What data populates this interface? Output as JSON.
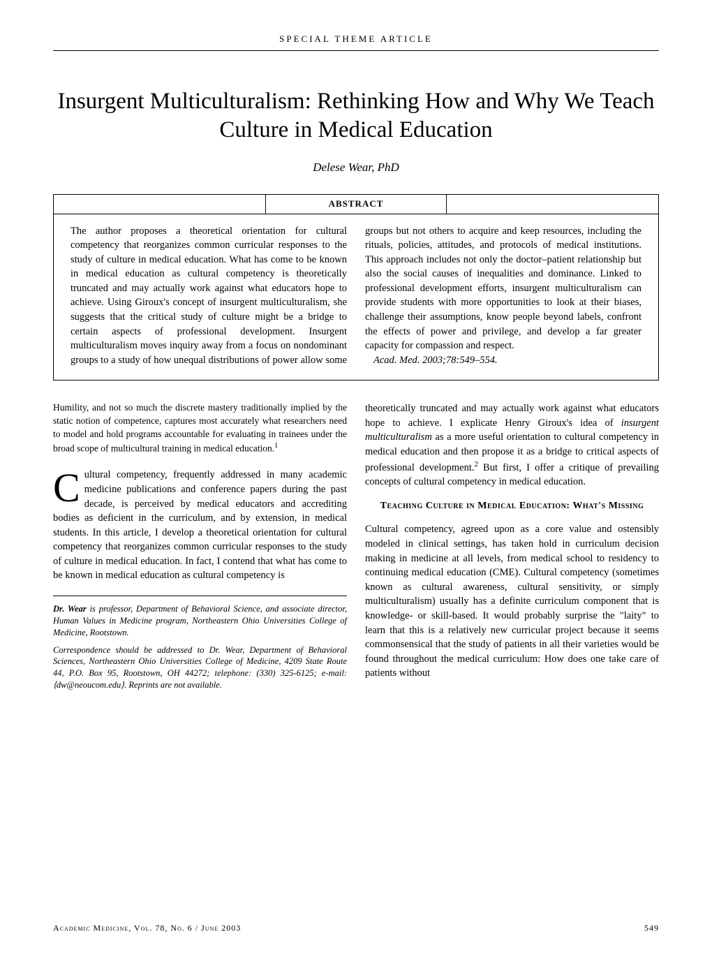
{
  "sectionLabel": "SPECIAL THEME ARTICLE",
  "title": "Insurgent Multiculturalism: Rethinking How and Why We Teach Culture in Medical Education",
  "author": "Delese Wear, PhD",
  "abstractLabel": "ABSTRACT",
  "abstract": {
    "left": "The author proposes a theoretical orientation for cultural competency that reorganizes common curricular responses to the study of culture in medical education. What has come to be known in medical education as cultural competency is theoretically truncated and may actually work against what educators hope to achieve. Using Giroux's concept of insurgent multiculturalism, she suggests that the critical study of culture might be a bridge to certain aspects of professional development. Insurgent multiculturalism moves inquiry away from a focus on nondominant groups to a study of how unequal distributions of power allow some groups but not ",
    "right": "others to acquire and keep resources, including the rituals, policies, attitudes, and protocols of medical institutions. This approach includes not only the doctor–patient relationship but also the social causes of inequalities and dominance. Linked to professional development efforts, insurgent multiculturalism can provide students with more opportunities to look at their biases, challenge their assumptions, know people beyond labels, confront the effects of power and privilege, and develop a far greater capacity for compassion and respect.",
    "citation": "Acad. Med. 2003;78:549–554."
  },
  "epigraph": "Humility, and not so much the discrete mastery traditionally implied by the static notion of competence, captures most accurately what researchers need to model and hold programs accountable for evaluating in trainees under the broad scope of multicultural training in medical education.",
  "epigraphRef": "1",
  "body": {
    "p1_drop": "C",
    "p1": "ultural competency, frequently addressed in many academic medicine publications and conference papers during the past decade, is perceived by medical educators and accrediting bodies as deficient in the curriculum, and by extension, in medical students. In this article, I develop a theoretical orientation for cultural competency that reorganizes common curricular responses to the study of culture in medical education. In fact, I contend that what has come to be known in medical education as cultural competency is ",
    "p2a": "theoretically truncated and may actually work against what educators hope to achieve. I explicate Henry Giroux's idea of ",
    "p2_it": "insurgent multiculturalism",
    "p2b": " as a more useful orientation to cultural competency in medical education and then propose it as a bridge to critical aspects of professional development.",
    "p2_ref": "2",
    "p2c": " But first, I offer a critique of prevailing concepts of cultural competency in medical education."
  },
  "h2": "Teaching Culture in Medical Education: What's Missing",
  "p3": "Cultural competency, agreed upon as a core value and ostensibly modeled in clinical settings, has taken hold in curriculum decision making in medicine at all levels, from medical school to residency to continuing medical education (CME). Cultural competency (sometimes known as cultural awareness, cultural sensitivity, or simply multiculturalism) usually has a definite curriculum component that is knowledge- or skill-based. It would probably surprise the \"laity\" to learn that this is a relatively new curricular project because it seems commonsensical that the study of patients in all their varieties would be found throughout the medical curriculum: How does one take care of patients without",
  "corr": {
    "p1a": "Dr. Wear",
    "p1b": " is professor, Department of Behavioral Science, and associate director, Human Values in Medicine program, Northeastern Ohio Universities College of Medicine, Rootstown.",
    "p2": "Correspondence should be addressed to Dr. Wear, Department of Behavioral Sciences, Northeastern Ohio Universities College of Medicine, 4209 State Route 44, P.O. Box 95, Rootstown, OH 44272; telephone: (330) 325-6125; e-mail: ⟨dw@neoucom.edu⟩. Reprints are not available."
  },
  "footer": {
    "journal": "Academic Medicine, Vol. 78, No. 6 / June 2003",
    "page": "549"
  }
}
